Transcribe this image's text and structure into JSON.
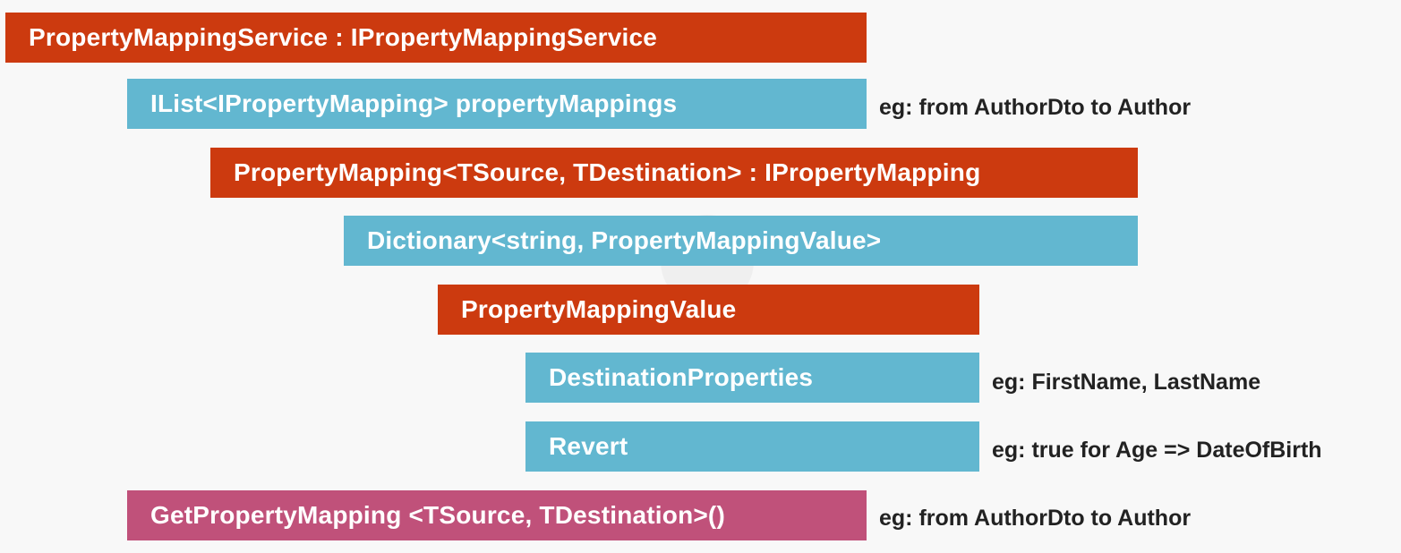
{
  "colors": {
    "background": "#f8f8f8",
    "orange": "#cc3a0f",
    "blue": "#62b7d0",
    "pink": "#c0517a"
  },
  "boxes": {
    "service": "PropertyMappingService : IPropertyMappingService",
    "mappings_list": "IList<IPropertyMapping> propertyMappings",
    "property_mapping": "PropertyMapping<TSource, TDestination> : IPropertyMapping",
    "dictionary": "Dictionary<string, PropertyMappingValue>",
    "mapping_value": "PropertyMappingValue",
    "destination_properties": "DestinationProperties",
    "revert": "Revert",
    "get_mapping": "GetPropertyMapping <TSource, TDestination>()"
  },
  "notes": {
    "mappings_list": "eg: from AuthorDto to Author",
    "destination_properties": "eg: FirstName, LastName",
    "revert": "eg: true for Age => DateOfBirth",
    "get_mapping": "eg: from AuthorDto to Author"
  }
}
